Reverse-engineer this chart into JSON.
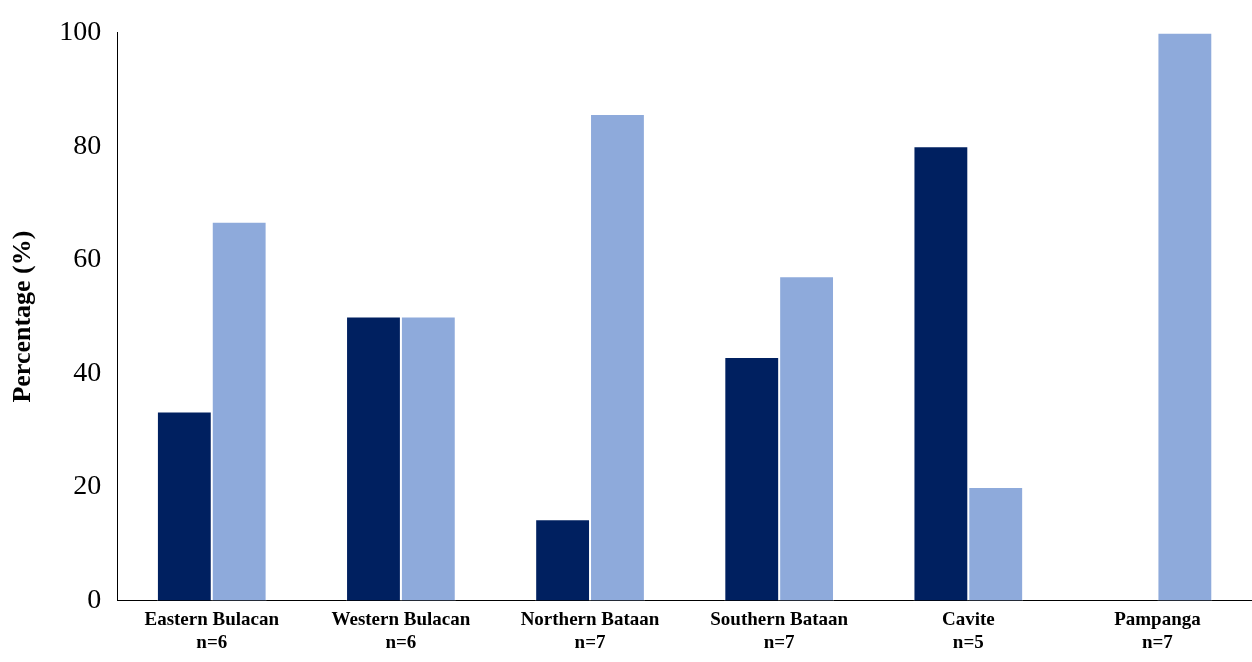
{
  "chart_data": {
    "type": "bar",
    "ylabel": "Percentage (%)",
    "categories": [
      "Eastern Bulacan\nn=6",
      "Western Bulacan\nn=6",
      "Northern Bataan\nn=7",
      "Southern Bataan\nn=7",
      "Cavite\nn=5",
      "Pampanga\nn=7"
    ],
    "series": [
      {
        "color": "#002060",
        "values": [
          33.3,
          50,
          14.3,
          42.9,
          80,
          0
        ]
      },
      {
        "color": "#8eaadb",
        "values": [
          66.7,
          50,
          85.7,
          57.1,
          20,
          100
        ]
      }
    ],
    "ylim": [
      0,
      100
    ],
    "yticks": [
      0,
      20,
      40,
      60,
      80,
      100
    ],
    "grid": false,
    "legend": false
  }
}
